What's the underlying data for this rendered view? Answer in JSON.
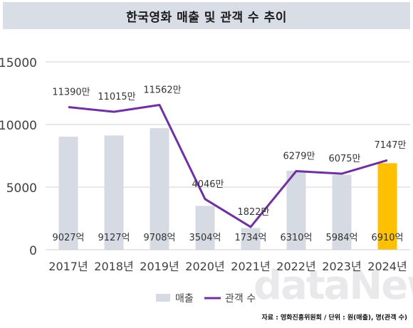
{
  "chart_data": {
    "type": "bar",
    "title": "한국영화 매출 및 관객 수 추이",
    "categories": [
      "2017년",
      "2018년",
      "2019년",
      "2020년",
      "2021년",
      "2022년",
      "2023년",
      "2024년"
    ],
    "ylim": [
      0,
      15000
    ],
    "yticks": [
      "0",
      "5000",
      "10000",
      "15000"
    ],
    "grid": true,
    "legend_position": "bottom-center",
    "series": [
      {
        "name": "매출",
        "type": "bar",
        "values": [
          9027,
          9127,
          9708,
          3504,
          1734,
          6310,
          5984,
          6910
        ],
        "labels": [
          "9027억",
          "9127억",
          "9708억",
          "3504억",
          "1734억",
          "6310억",
          "5984억",
          "6910억"
        ],
        "color": "#d6dae2",
        "highlight_color": "#ffc000",
        "highlight_index": 7
      },
      {
        "name": "관객 수",
        "type": "line",
        "values": [
          11390,
          11015,
          11562,
          4046,
          1822,
          6279,
          6075,
          7147
        ],
        "labels": [
          "11390만",
          "11015만",
          "11562만",
          "4046만",
          "1822만",
          "6279만",
          "6075만",
          "7147만"
        ],
        "color": "#7030a0"
      }
    ]
  },
  "source_text": "자료 : 영화진흥위원회 / 단위 : 원(매출), 명(관객 수)",
  "watermark": "dataNews"
}
